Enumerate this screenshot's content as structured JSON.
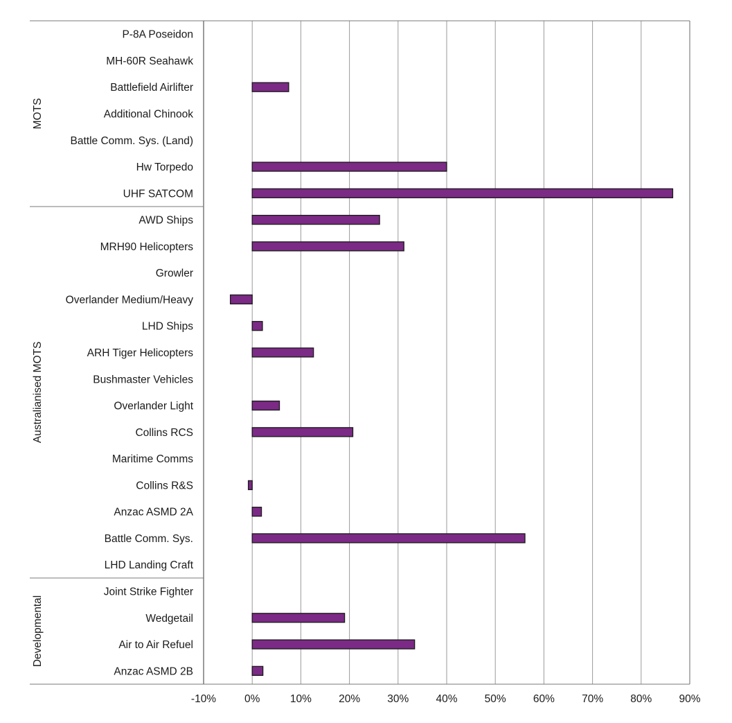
{
  "chart_data": {
    "type": "bar",
    "orientation": "horizontal",
    "xlim": [
      -10,
      90
    ],
    "x_ticks": [
      -10,
      0,
      10,
      20,
      30,
      40,
      50,
      60,
      70,
      80,
      90
    ],
    "x_tick_suffix": "%",
    "grid": "vertical",
    "bar_color": "#7b2a85",
    "bar_edge_color": "#1a1a1a",
    "categories": [
      "P-8A Poseidon",
      "MH-60R Seahawk",
      "Battlefield Airlifter",
      "Additional Chinook",
      "Battle Comm. Sys. (Land)",
      "Hw Torpedo",
      "UHF SATCOM",
      "AWD Ships",
      "MRH90 Helicopters",
      "Growler",
      "Overlander Medium/Heavy",
      "LHD Ships",
      "ARH Tiger Helicopters",
      "Bushmaster Vehicles",
      "Overlander Light",
      "Collins RCS",
      "Maritime Comms",
      "Collins R&S",
      "Anzac ASMD 2A",
      "Battle Comm. Sys.",
      "LHD Landing Craft",
      "Joint Strike Fighter",
      "Wedgetail",
      "Air to Air Refuel",
      "Anzac ASMD 2B"
    ],
    "values": [
      0,
      0,
      7.5,
      0,
      0,
      40,
      86.5,
      26.2,
      31.2,
      0,
      -4.5,
      2.1,
      12.6,
      0,
      5.6,
      20.7,
      0,
      -0.8,
      1.9,
      56.1,
      0,
      0,
      19,
      33.4,
      2.2
    ],
    "groups": [
      {
        "label": "MOTS",
        "start": 0,
        "end": 6
      },
      {
        "label": "Australianised MOTS",
        "start": 7,
        "end": 20
      },
      {
        "label": "Developmental",
        "start": 21,
        "end": 24
      }
    ]
  }
}
